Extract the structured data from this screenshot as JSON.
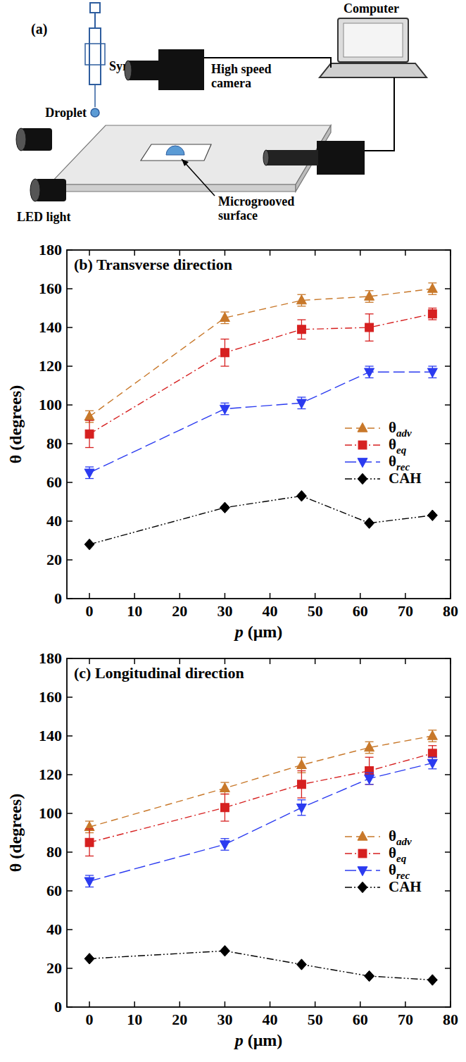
{
  "diagram": {
    "label": "(a)",
    "texts": {
      "syringe": "Syringe",
      "droplet": "Droplet",
      "computer": "Computer",
      "camera": "High speed camera",
      "led": "LED light",
      "surface": "Microgrooved surface"
    }
  },
  "chart_data": [
    {
      "type": "line",
      "title": "(b) Transverse direction",
      "x_label": "p (μm)",
      "y_label": "θ (degrees)",
      "x": [
        0,
        30,
        47,
        62,
        76
      ],
      "xlim": [
        -5,
        80
      ],
      "xticks": [
        0,
        10,
        20,
        30,
        40,
        50,
        60,
        70,
        80
      ],
      "ylim": [
        0,
        180
      ],
      "yticks": [
        0,
        20,
        40,
        60,
        80,
        100,
        120,
        140,
        160,
        180
      ],
      "grid": false,
      "legend": "right",
      "series": [
        {
          "name": "θadv",
          "color": "#c8782a",
          "marker": "triangle-up",
          "line_style": "dashed",
          "values": [
            94,
            145,
            154,
            156,
            160
          ],
          "errors": [
            3,
            3,
            3,
            3,
            3
          ]
        },
        {
          "name": "θeq",
          "color": "#d62020",
          "marker": "square",
          "line_style": "dash-dot",
          "values": [
            85,
            127,
            139,
            140,
            147
          ],
          "errors": [
            7,
            7,
            5,
            7,
            3
          ]
        },
        {
          "name": "θrec",
          "color": "#2b3bf0",
          "marker": "triangle-down",
          "line_style": "long-dashed",
          "values": [
            65,
            98,
            101,
            117,
            117
          ],
          "errors": [
            3,
            3,
            3,
            3,
            3
          ]
        },
        {
          "name": "CAH",
          "color": "#000000",
          "marker": "diamond",
          "line_style": "dash-dot-dot",
          "values": [
            28,
            47,
            53,
            39,
            43
          ]
        }
      ]
    },
    {
      "type": "line",
      "title": "(c) Longitudinal direction",
      "x_label": "p (μm)",
      "y_label": "θ (degrees)",
      "x": [
        0,
        30,
        47,
        62,
        76
      ],
      "xlim": [
        -5,
        80
      ],
      "xticks": [
        0,
        10,
        20,
        30,
        40,
        50,
        60,
        70,
        80
      ],
      "ylim": [
        0,
        180
      ],
      "yticks": [
        0,
        20,
        40,
        60,
        80,
        100,
        120,
        140,
        160,
        180
      ],
      "grid": false,
      "legend": "right",
      "series": [
        {
          "name": "θadv",
          "color": "#c8782a",
          "marker": "triangle-up",
          "line_style": "dashed",
          "values": [
            93,
            113,
            125,
            134,
            140
          ],
          "errors": [
            3,
            3,
            4,
            3,
            3
          ]
        },
        {
          "name": "θeq",
          "color": "#d62020",
          "marker": "square",
          "line_style": "dash-dot",
          "values": [
            85,
            103,
            115,
            122,
            131
          ],
          "errors": [
            7,
            7,
            7,
            7,
            4
          ]
        },
        {
          "name": "θrec",
          "color": "#2b3bf0",
          "marker": "triangle-down",
          "line_style": "long-dashed",
          "values": [
            65,
            84,
            103,
            118,
            126
          ],
          "errors": [
            3,
            3,
            4,
            3,
            3
          ]
        },
        {
          "name": "CAH",
          "color": "#000000",
          "marker": "diamond",
          "line_style": "dash-dot-dot",
          "values": [
            25,
            29,
            22,
            16,
            14
          ]
        }
      ]
    }
  ]
}
